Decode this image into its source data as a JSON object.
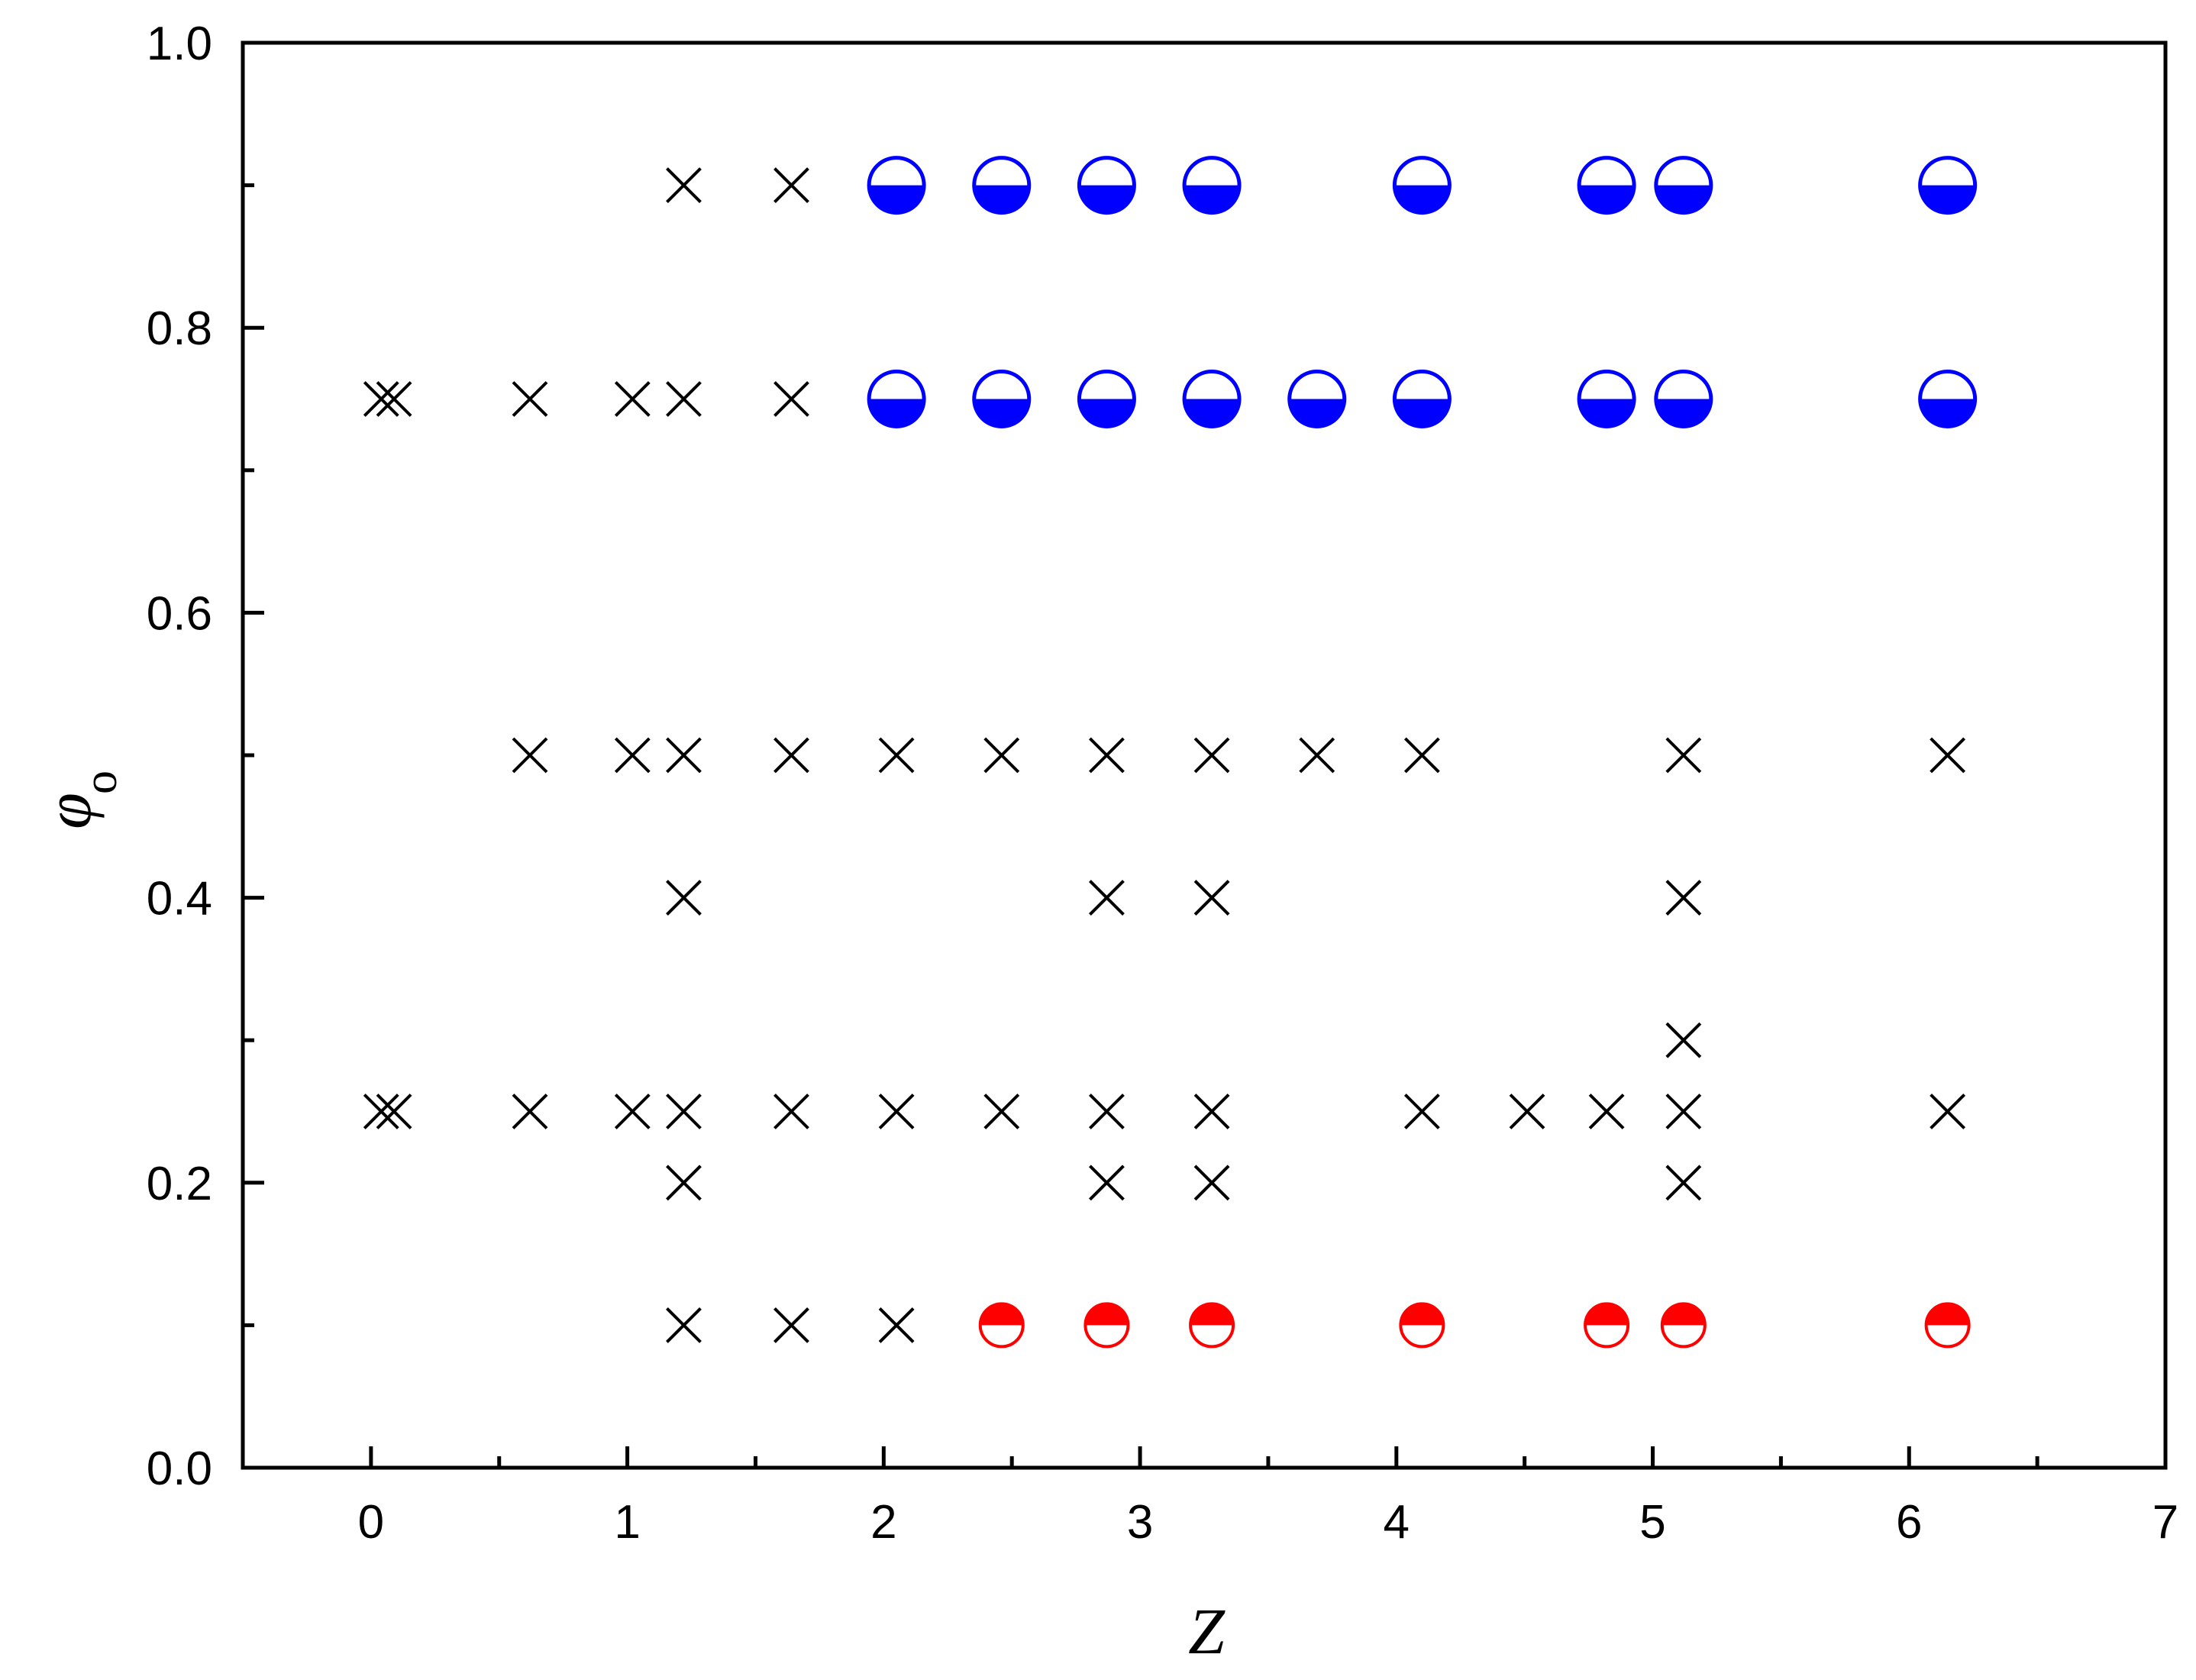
{
  "chart_data": {
    "type": "scatter",
    "xlabel": "Z",
    "ylabel": "φ",
    "ylabel_subscript": "o",
    "xlim": [
      -0.5,
      7
    ],
    "ylim": [
      0.0,
      1.0
    ],
    "x_ticks": [
      "0",
      "1",
      "2",
      "3",
      "4",
      "5",
      "6",
      "7"
    ],
    "y_ticks": [
      "0.0",
      "0.2",
      "0.4",
      "0.6",
      "0.8",
      "1.0"
    ],
    "grid": false,
    "legend": "none",
    "colors": {
      "cross": "#000000",
      "blue": "#0000ff",
      "red": "#ff0000"
    },
    "series": [
      {
        "marker": "cross",
        "color": "#000000",
        "points": [
          [
            1.22,
            0.9
          ],
          [
            1.64,
            0.9
          ],
          [
            0.04,
            0.75
          ],
          [
            0.09,
            0.75
          ],
          [
            0.62,
            0.75
          ],
          [
            1.02,
            0.75
          ],
          [
            1.22,
            0.75
          ],
          [
            1.64,
            0.75
          ],
          [
            0.62,
            0.5
          ],
          [
            1.02,
            0.5
          ],
          [
            1.22,
            0.5
          ],
          [
            1.64,
            0.5
          ],
          [
            2.05,
            0.5
          ],
          [
            2.46,
            0.5
          ],
          [
            2.87,
            0.5
          ],
          [
            3.28,
            0.5
          ],
          [
            3.69,
            0.5
          ],
          [
            4.1,
            0.5
          ],
          [
            5.12,
            0.5
          ],
          [
            6.15,
            0.5
          ],
          [
            1.22,
            0.4
          ],
          [
            2.87,
            0.4
          ],
          [
            3.28,
            0.4
          ],
          [
            5.12,
            0.4
          ],
          [
            5.12,
            0.3
          ],
          [
            0.04,
            0.25
          ],
          [
            0.09,
            0.25
          ],
          [
            0.62,
            0.25
          ],
          [
            1.02,
            0.25
          ],
          [
            1.22,
            0.25
          ],
          [
            1.64,
            0.25
          ],
          [
            2.05,
            0.25
          ],
          [
            2.46,
            0.25
          ],
          [
            2.87,
            0.25
          ],
          [
            3.28,
            0.25
          ],
          [
            4.1,
            0.25
          ],
          [
            4.51,
            0.25
          ],
          [
            4.82,
            0.25
          ],
          [
            5.12,
            0.25
          ],
          [
            6.15,
            0.25
          ],
          [
            1.22,
            0.2
          ],
          [
            2.87,
            0.2
          ],
          [
            3.28,
            0.2
          ],
          [
            5.12,
            0.2
          ],
          [
            1.22,
            0.1
          ],
          [
            1.64,
            0.1
          ],
          [
            2.05,
            0.1
          ]
        ]
      },
      {
        "marker": "circle-bottom-half",
        "color": "#0000ff",
        "points": [
          [
            2.05,
            0.9
          ],
          [
            2.46,
            0.9
          ],
          [
            2.87,
            0.9
          ],
          [
            3.28,
            0.9
          ],
          [
            4.1,
            0.9
          ],
          [
            4.82,
            0.9
          ],
          [
            5.12,
            0.9
          ],
          [
            6.15,
            0.9
          ],
          [
            2.05,
            0.75
          ],
          [
            2.46,
            0.75
          ],
          [
            2.87,
            0.75
          ],
          [
            3.28,
            0.75
          ],
          [
            3.69,
            0.75
          ],
          [
            4.1,
            0.75
          ],
          [
            4.82,
            0.75
          ],
          [
            5.12,
            0.75
          ],
          [
            6.15,
            0.75
          ]
        ]
      },
      {
        "marker": "circle-top-half",
        "color": "#ff0000",
        "points": [
          [
            2.46,
            0.1
          ],
          [
            2.87,
            0.1
          ],
          [
            3.28,
            0.1
          ],
          [
            4.1,
            0.1
          ],
          [
            4.82,
            0.1
          ],
          [
            5.12,
            0.1
          ],
          [
            6.15,
            0.1
          ]
        ]
      }
    ]
  }
}
